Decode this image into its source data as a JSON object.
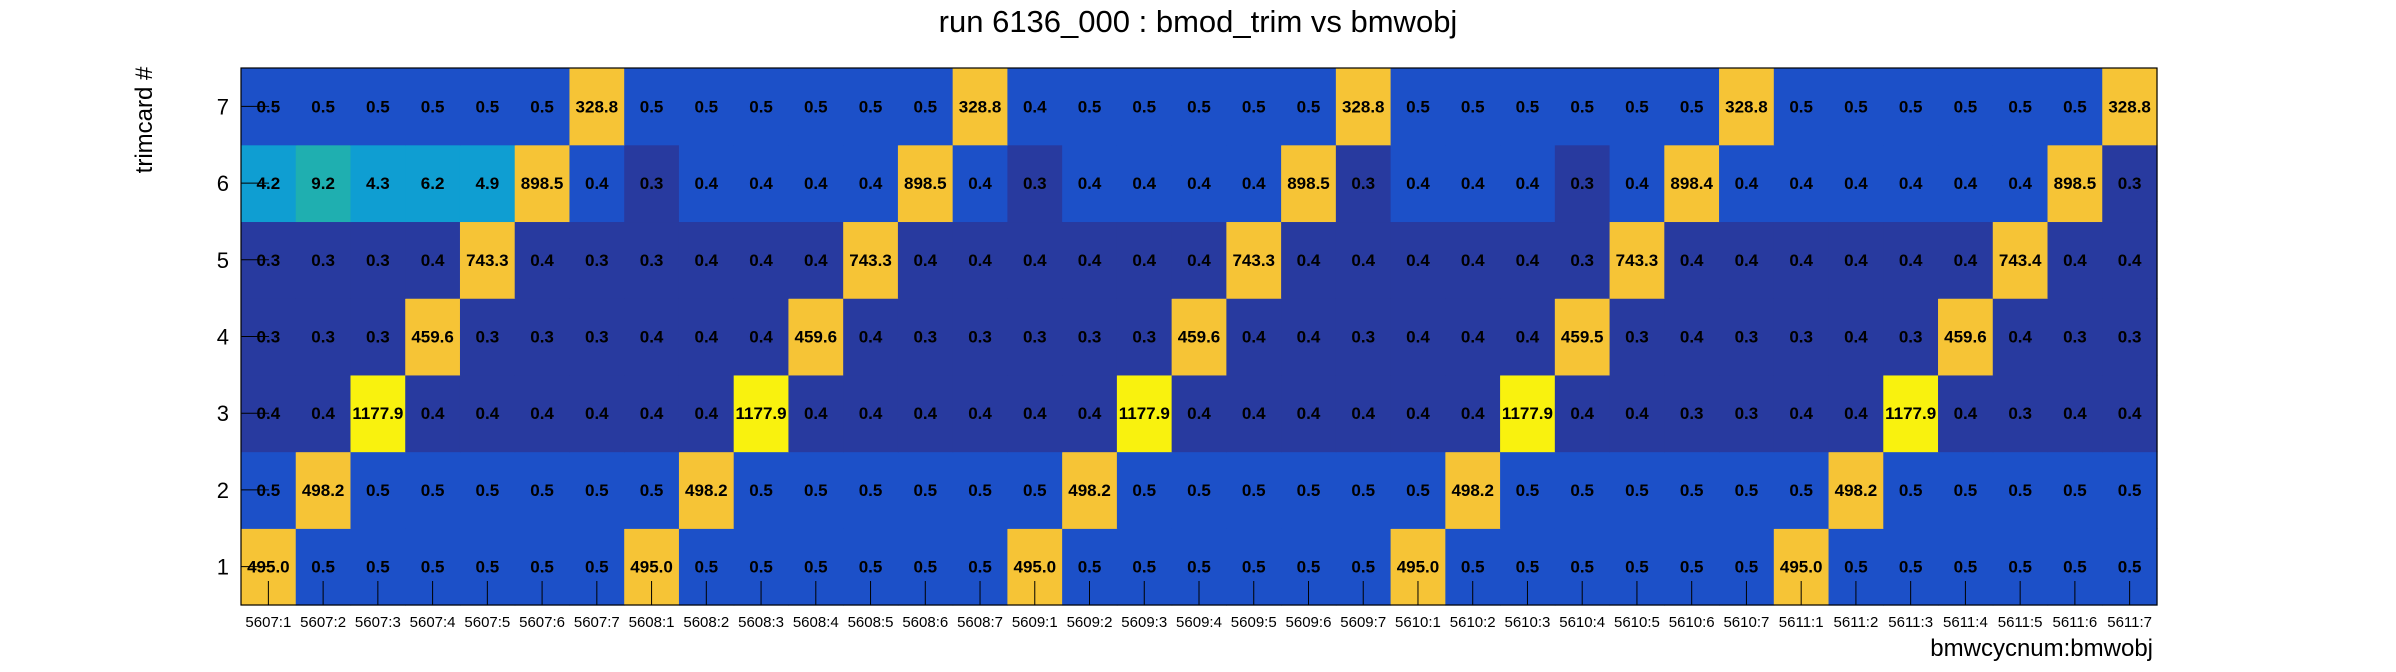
{
  "chart_data": {
    "type": "heatmap",
    "title": "run 6136_000 : bmod_trim vs bmwobj",
    "xlabel": "bmwcycnum:bmwobj",
    "ylabel": "trimcard #",
    "x_categories": [
      "5607:1",
      "5607:2",
      "5607:3",
      "5607:4",
      "5607:5",
      "5607:6",
      "5607:7",
      "5608:1",
      "5608:2",
      "5608:3",
      "5608:4",
      "5608:5",
      "5608:6",
      "5608:7",
      "5609:1",
      "5609:2",
      "5609:3",
      "5609:4",
      "5609:5",
      "5609:6",
      "5609:7",
      "5610:1",
      "5610:2",
      "5610:3",
      "5610:4",
      "5610:5",
      "5610:6",
      "5610:7",
      "5611:1",
      "5611:2",
      "5611:3",
      "5611:4",
      "5611:5",
      "5611:6",
      "5611:7"
    ],
    "y_categories": [
      "1",
      "2",
      "3",
      "4",
      "5",
      "6",
      "7"
    ],
    "values": {
      "1": [
        "495.0",
        "0.5",
        "0.5",
        "0.5",
        "0.5",
        "0.5",
        "0.5",
        "495.0",
        "0.5",
        "0.5",
        "0.5",
        "0.5",
        "0.5",
        "0.5",
        "495.0",
        "0.5",
        "0.5",
        "0.5",
        "0.5",
        "0.5",
        "0.5",
        "495.0",
        "0.5",
        "0.5",
        "0.5",
        "0.5",
        "0.5",
        "0.5",
        "495.0",
        "0.5",
        "0.5",
        "0.5",
        "0.5",
        "0.5",
        "0.5"
      ],
      "2": [
        "0.5",
        "498.2",
        "0.5",
        "0.5",
        "0.5",
        "0.5",
        "0.5",
        "0.5",
        "498.2",
        "0.5",
        "0.5",
        "0.5",
        "0.5",
        "0.5",
        "0.5",
        "498.2",
        "0.5",
        "0.5",
        "0.5",
        "0.5",
        "0.5",
        "0.5",
        "498.2",
        "0.5",
        "0.5",
        "0.5",
        "0.5",
        "0.5",
        "0.5",
        "498.2",
        "0.5",
        "0.5",
        "0.5",
        "0.5",
        "0.5"
      ],
      "3": [
        "0.4",
        "0.4",
        "1177.9",
        "0.4",
        "0.4",
        "0.4",
        "0.4",
        "0.4",
        "0.4",
        "1177.9",
        "0.4",
        "0.4",
        "0.4",
        "0.4",
        "0.4",
        "0.4",
        "1177.9",
        "0.4",
        "0.4",
        "0.4",
        "0.4",
        "0.4",
        "0.4",
        "1177.9",
        "0.4",
        "0.4",
        "0.3",
        "0.3",
        "0.4",
        "0.4",
        "1177.9",
        "0.4",
        "0.3",
        "0.4",
        "0.4"
      ],
      "4": [
        "0.3",
        "0.3",
        "0.3",
        "459.6",
        "0.3",
        "0.3",
        "0.3",
        "0.4",
        "0.4",
        "0.4",
        "459.6",
        "0.4",
        "0.3",
        "0.3",
        "0.3",
        "0.3",
        "0.3",
        "459.6",
        "0.4",
        "0.4",
        "0.3",
        "0.4",
        "0.4",
        "0.4",
        "459.5",
        "0.3",
        "0.4",
        "0.3",
        "0.3",
        "0.4",
        "0.3",
        "459.6",
        "0.4",
        "0.3",
        "0.3"
      ],
      "5": [
        "0.3",
        "0.3",
        "0.3",
        "0.4",
        "743.3",
        "0.4",
        "0.3",
        "0.3",
        "0.4",
        "0.4",
        "0.4",
        "743.3",
        "0.4",
        "0.4",
        "0.4",
        "0.4",
        "0.4",
        "0.4",
        "743.3",
        "0.4",
        "0.4",
        "0.4",
        "0.4",
        "0.4",
        "0.3",
        "743.3",
        "0.4",
        "0.4",
        "0.4",
        "0.4",
        "0.4",
        "0.4",
        "743.4",
        "0.4",
        "0.4"
      ],
      "6": [
        "4.2",
        "9.2",
        "4.3",
        "6.2",
        "4.9",
        "898.5",
        "0.4",
        "0.3",
        "0.4",
        "0.4",
        "0.4",
        "0.4",
        "898.5",
        "0.4",
        "0.3",
        "0.4",
        "0.4",
        "0.4",
        "0.4",
        "898.5",
        "0.3",
        "0.4",
        "0.4",
        "0.4",
        "0.3",
        "0.4",
        "898.4",
        "0.4",
        "0.4",
        "0.4",
        "0.4",
        "0.4",
        "0.4",
        "898.5",
        "0.3"
      ],
      "7": [
        "0.5",
        "0.5",
        "0.5",
        "0.5",
        "0.5",
        "0.5",
        "328.8",
        "0.5",
        "0.5",
        "0.5",
        "0.5",
        "0.5",
        "0.5",
        "328.8",
        "0.4",
        "0.5",
        "0.5",
        "0.5",
        "0.5",
        "0.5",
        "328.8",
        "0.5",
        "0.5",
        "0.5",
        "0.5",
        "0.5",
        "0.5",
        "328.8",
        "0.5",
        "0.5",
        "0.5",
        "0.5",
        "0.5",
        "0.5",
        "328.8"
      ]
    },
    "grid": false,
    "colors": {
      "low_dark": "#283a9f",
      "low_mid": "#1c50c8",
      "cyan": "#0f9ed2",
      "teal": "#1fafb0",
      "orange": "#f6c436",
      "yellow": "#f9f20e"
    }
  }
}
